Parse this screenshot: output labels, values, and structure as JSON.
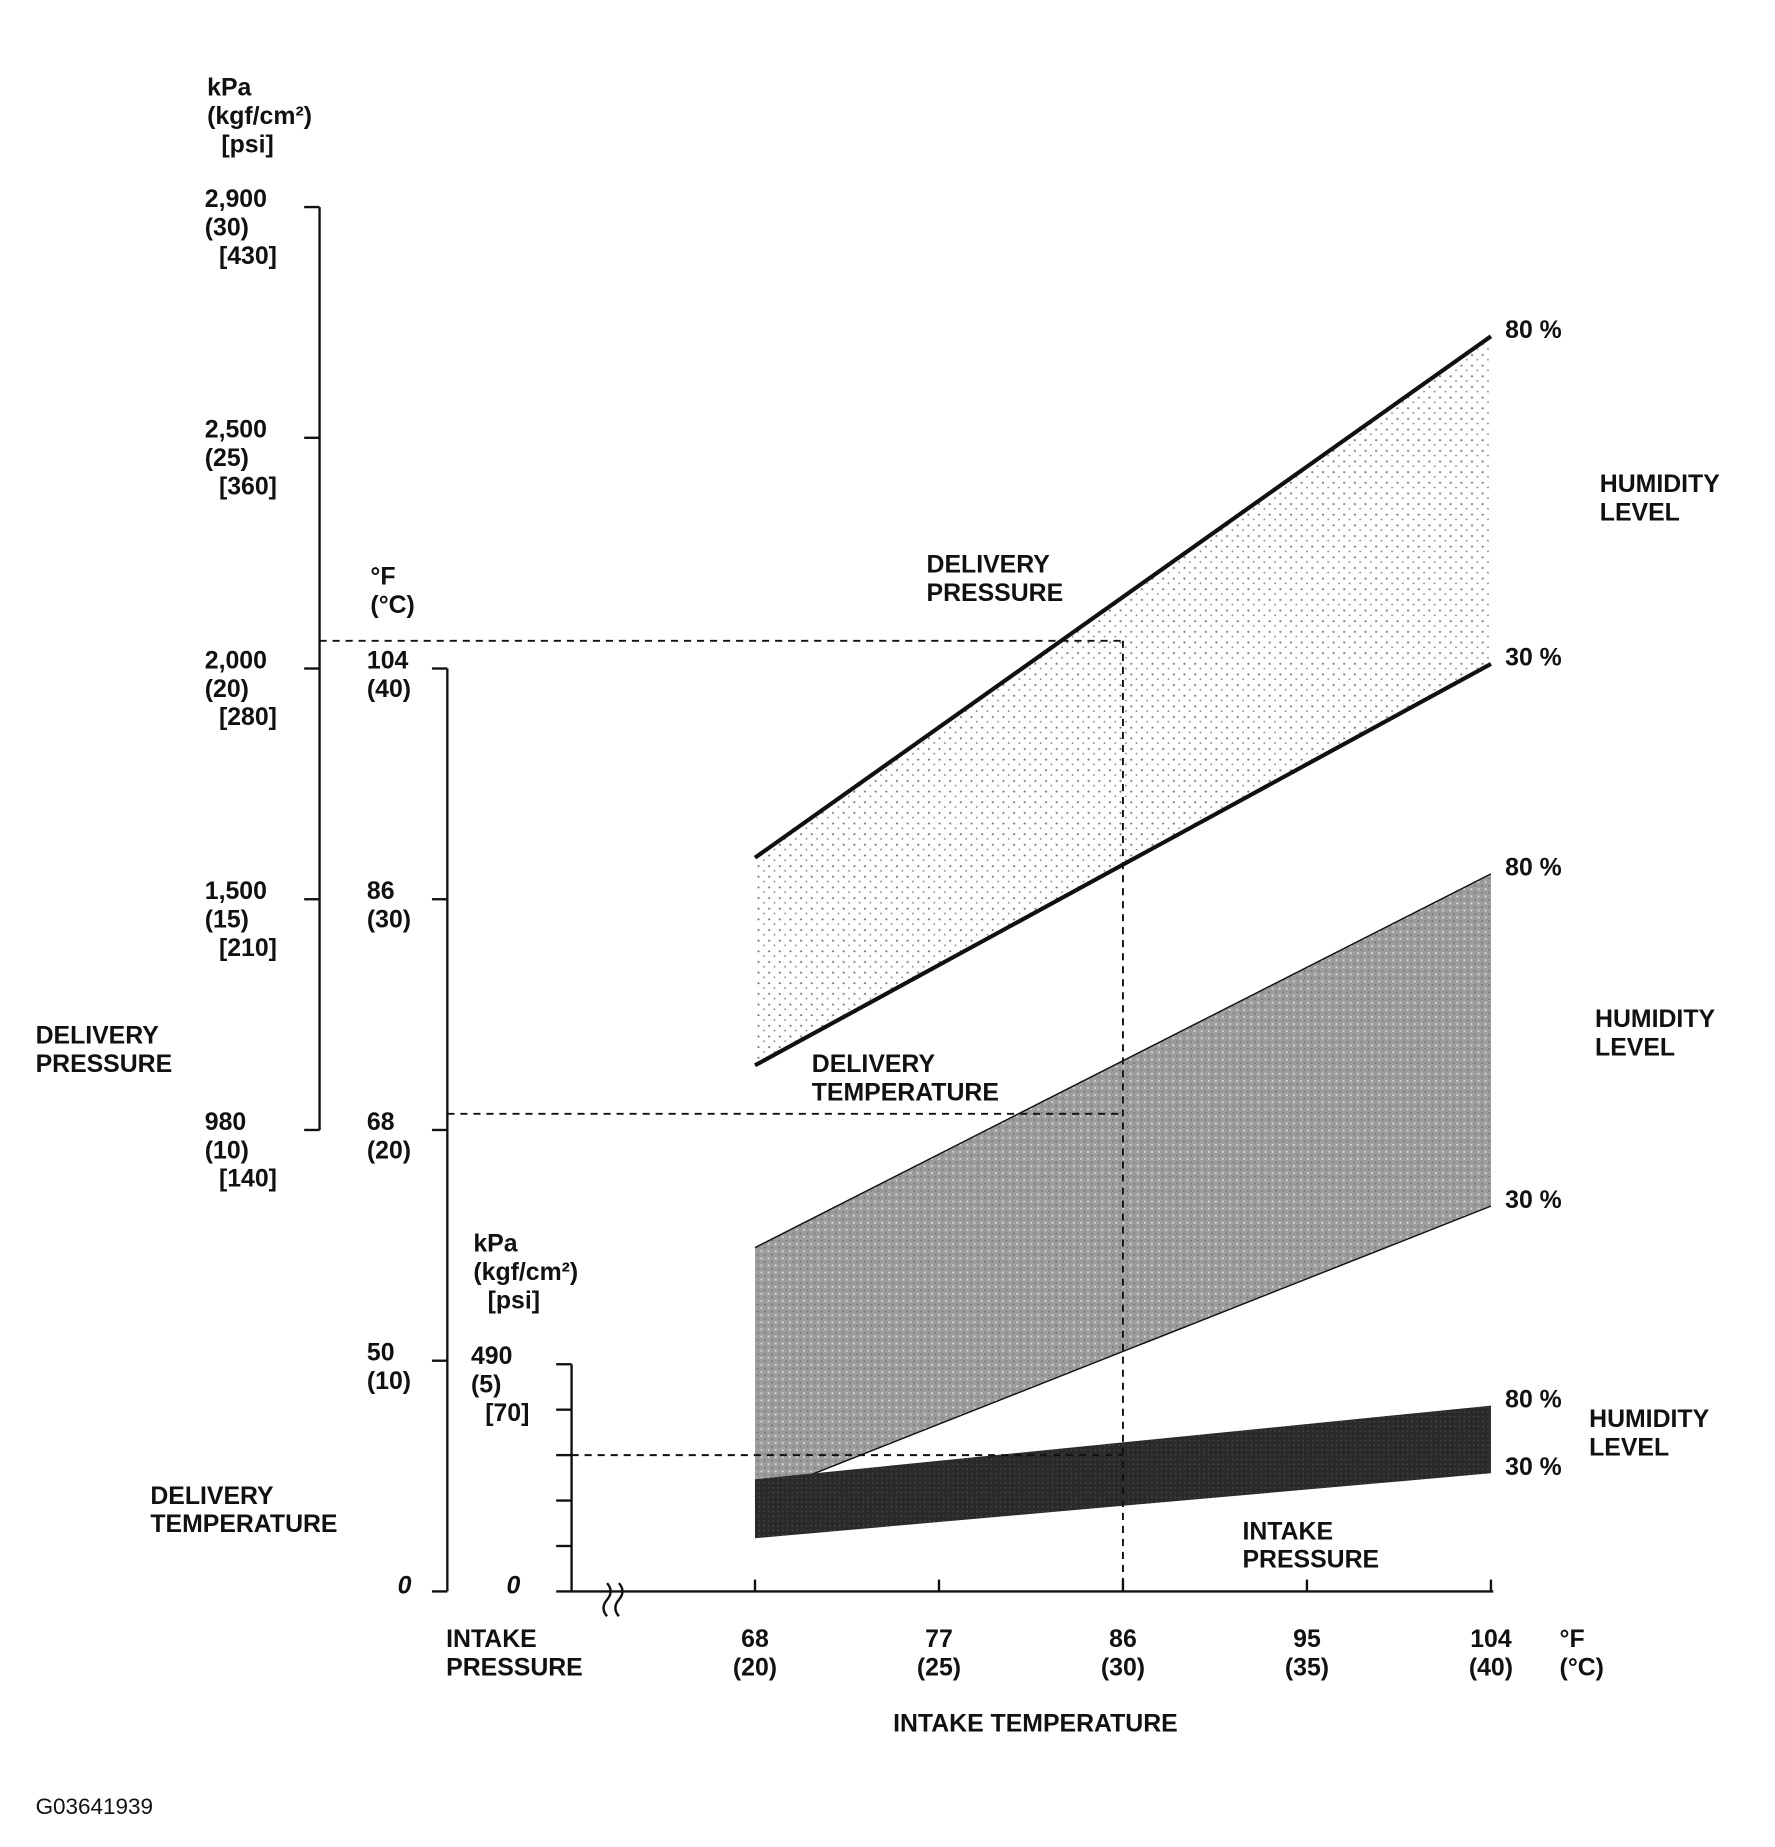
{
  "chart_data": {
    "type": "band",
    "figure_id": "G03641939",
    "x_label": "INTAKE TEMPERATURE",
    "x_unit": "°F\n(°C)",
    "xlim": [
      68,
      104
    ],
    "xticks": [
      {
        "value": 68,
        "label": "68\n(20)"
      },
      {
        "value": 77,
        "label": "77\n(25)"
      },
      {
        "value": 86,
        "label": "86\n(30)"
      },
      {
        "value": 95,
        "label": "95\n(35)"
      },
      {
        "value": 104,
        "label": "104\n(40)"
      }
    ],
    "x": [
      68,
      104
    ],
    "axes": [
      {
        "title": "DELIVERY\nPRESSURE",
        "unit": "kPa\n(kgf/cm²)\n[psi]",
        "ylim": [
          10,
          30
        ],
        "yticks": [
          {
            "value": 10,
            "label": "980\n(10)\n[140]"
          },
          {
            "value": 15,
            "label": "1,500\n(15)\n[210]"
          },
          {
            "value": 20,
            "label": "2,000\n(20)\n[280]"
          },
          {
            "value": 25,
            "label": "2,500\n(25)\n[360]"
          },
          {
            "value": 30,
            "label": "2,900\n(30)\n[430]"
          }
        ]
      },
      {
        "title": "DELIVERY\nTEMPERATURE",
        "unit": "°F\n(°C)",
        "ylim": [
          0,
          40
        ],
        "yticks": [
          0,
          {
            "value": 10,
            "label": "50\n(10)"
          },
          {
            "value": 20,
            "label": "68\n(20)"
          },
          {
            "value": 30,
            "label": "86\n(30)"
          },
          {
            "value": 40,
            "label": "104\n(40)"
          }
        ]
      },
      {
        "title": "INTAKE\nPRESSURE",
        "unit": "kPa\n(kgf/cm²)\n[psi]",
        "ylim": [
          0,
          5
        ],
        "yticks": [
          0,
          {
            "value": 5,
            "label": "490\n(5)\n[70]"
          }
        ],
        "yminorticks": [
          1,
          2,
          3,
          4
        ]
      }
    ],
    "series": [
      {
        "name": "DELIVERY\nPRESSURE",
        "axis": 0,
        "color": "#9a9a9a",
        "group_label": "HUMIDITY\nLEVEL",
        "bounds": [
          {
            "name": "80 %",
            "values": [
              15.9,
              27.2
            ]
          },
          {
            "name": "30 %",
            "values": [
              11.4,
              20.1
            ]
          }
        ]
      },
      {
        "name": "DELIVERY\nTEMPERATURE",
        "axis": 1,
        "color": "#a8a8a8",
        "group_label": "HUMIDITY\nLEVEL",
        "bounds": [
          {
            "name": "80 %",
            "values": [
              14.9,
              31.1
            ]
          },
          {
            "name": "30 %",
            "values": [
              4.1,
              16.7
            ]
          }
        ]
      },
      {
        "name": "INTAKE\nPRESSURE",
        "axis": 2,
        "color": "#2a2a2a",
        "group_label": "HUMIDITY\nLEVEL",
        "bounds": [
          {
            "name": "80 %",
            "values": [
              2.47,
              4.09
            ]
          },
          {
            "name": "30 %",
            "values": [
              1.17,
              2.6
            ]
          }
        ]
      }
    ],
    "reading": {
      "x": 86,
      "values": [
        20.6,
        20.7,
        3.0
      ]
    }
  }
}
